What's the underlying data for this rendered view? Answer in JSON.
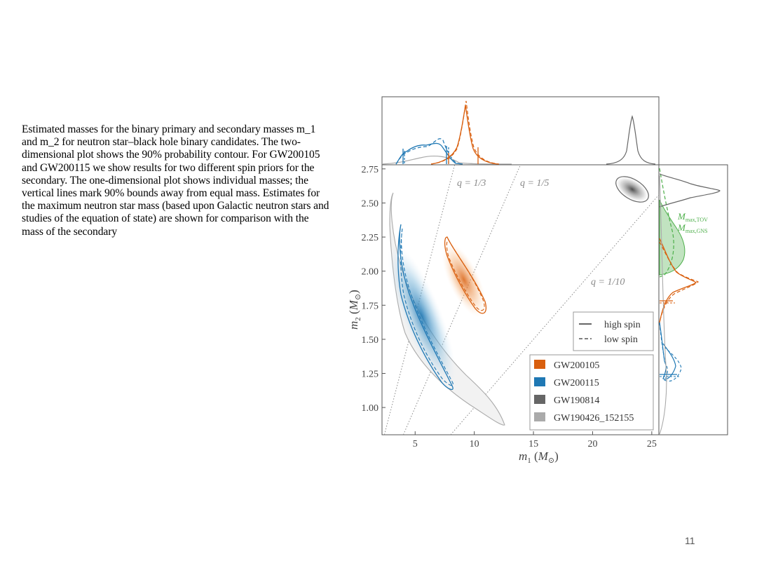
{
  "caption": {
    "text": "Estimated masses for the binary primary and secondary masses m_1 and m_2 for neutron star–black hole binary candidates. The two-dimensional plot shows the 90% probability contour. For GW200105 and GW200115 we show results for two different spin priors for the secondary. The one-dimensional plot shows individual masses; the vertical lines mark 90% bounds away from equal mass. Estimates for the maximum neutron star mass (based upon Galactic neutron stars and studies of the equation of state) are shown for comparison with the mass of the secondary"
  },
  "page_number": "11",
  "colors": {
    "GW200105": "#d95f0e",
    "GW200115": "#1f78b4",
    "GW190814": "#666666",
    "GW190426_152155": "#aaaaaa",
    "mmax": "#4daf4a",
    "q_lines": "#888888"
  },
  "chart_data": {
    "type": "scatter",
    "subtype": "joint posterior contour plot with marginal distributions",
    "xlabel": "m_1 (M_⊙)",
    "ylabel": "m_2 (M_⊙)",
    "xlim": [
      2.2,
      25.6
    ],
    "ylim": [
      0.8,
      2.78
    ],
    "xticks": [
      5,
      10,
      15,
      20,
      25
    ],
    "yticks": [
      1.0,
      1.25,
      1.5,
      1.75,
      2.0,
      2.25,
      2.5,
      2.75
    ],
    "ytick_labels": [
      "1.00",
      "1.25",
      "1.50",
      "1.75",
      "2.00",
      "2.25",
      "2.50",
      "2.75"
    ],
    "mass_ratio_lines": [
      {
        "q": 0.3333,
        "label": "q = 1/3"
      },
      {
        "q": 0.2,
        "label": "q = 1/5"
      },
      {
        "q": 0.1,
        "label": "q = 1/10"
      }
    ],
    "series": [
      {
        "name": "GW200105",
        "color": "#d95f0e",
        "m1_peak": 8.9,
        "m2_peak": 1.91,
        "contour_90": [
          [
            7.6,
            2.22
          ],
          [
            9.3,
            1.97
          ],
          [
            10.5,
            1.65
          ],
          [
            8.2,
            1.84
          ]
        ],
        "m1_90_bound": [
          7.8,
          10.2
        ],
        "m2_90_bound": [
          1.75,
          1.75
        ]
      },
      {
        "name": "GW200115",
        "color": "#1f78b4",
        "m1_peak": 7.0,
        "m2_peak": 1.26,
        "contour_90": [
          [
            3.2,
            2.34
          ],
          [
            4.6,
            1.8
          ],
          [
            7.6,
            1.16
          ],
          [
            6.6,
            1.22
          ],
          [
            3.3,
            2.18
          ]
        ],
        "m1_90_bound": [
          3.9,
          7.5
        ],
        "m2_90_bound": [
          1.2,
          1.2
        ]
      },
      {
        "name": "GW190814",
        "color": "#666666",
        "m1_peak": 23.2,
        "m2_peak": 2.59,
        "contour_90": [
          [
            21.7,
            2.67
          ],
          [
            24.4,
            2.5
          ]
        ]
      },
      {
        "name": "GW190426_152155",
        "color": "#aaaaaa",
        "m1_peak": 5.7,
        "m2_peak": 1.5,
        "contour_90": [
          [
            2.8,
            2.57
          ],
          [
            5.0,
            1.6
          ],
          [
            12.3,
            0.85
          ],
          [
            3.5,
            2.1
          ]
        ]
      }
    ],
    "spin_legend": [
      "high spin",
      "low spin"
    ],
    "event_legend": [
      "GW200105",
      "GW200115",
      "GW190814",
      "GW190426_152155"
    ],
    "mmax_labels": [
      "M_max,TOV",
      "M_max,GNS"
    ],
    "mmax_range": [
      2.0,
      2.5
    ],
    "grid": false,
    "legend_placement": "lower-right (events), right-middle (spin)"
  },
  "legend": {
    "spin": [
      {
        "label": "high spin",
        "style": "solid"
      },
      {
        "label": "low spin",
        "style": "dashed"
      }
    ],
    "events": [
      {
        "label": "GW200105",
        "color": "#d95f0e"
      },
      {
        "label": "GW200115",
        "color": "#1f78b4"
      },
      {
        "label": "GW190814",
        "color": "#666666"
      },
      {
        "label": "GW190426_152155",
        "color": "#aaaaaa"
      }
    ]
  }
}
